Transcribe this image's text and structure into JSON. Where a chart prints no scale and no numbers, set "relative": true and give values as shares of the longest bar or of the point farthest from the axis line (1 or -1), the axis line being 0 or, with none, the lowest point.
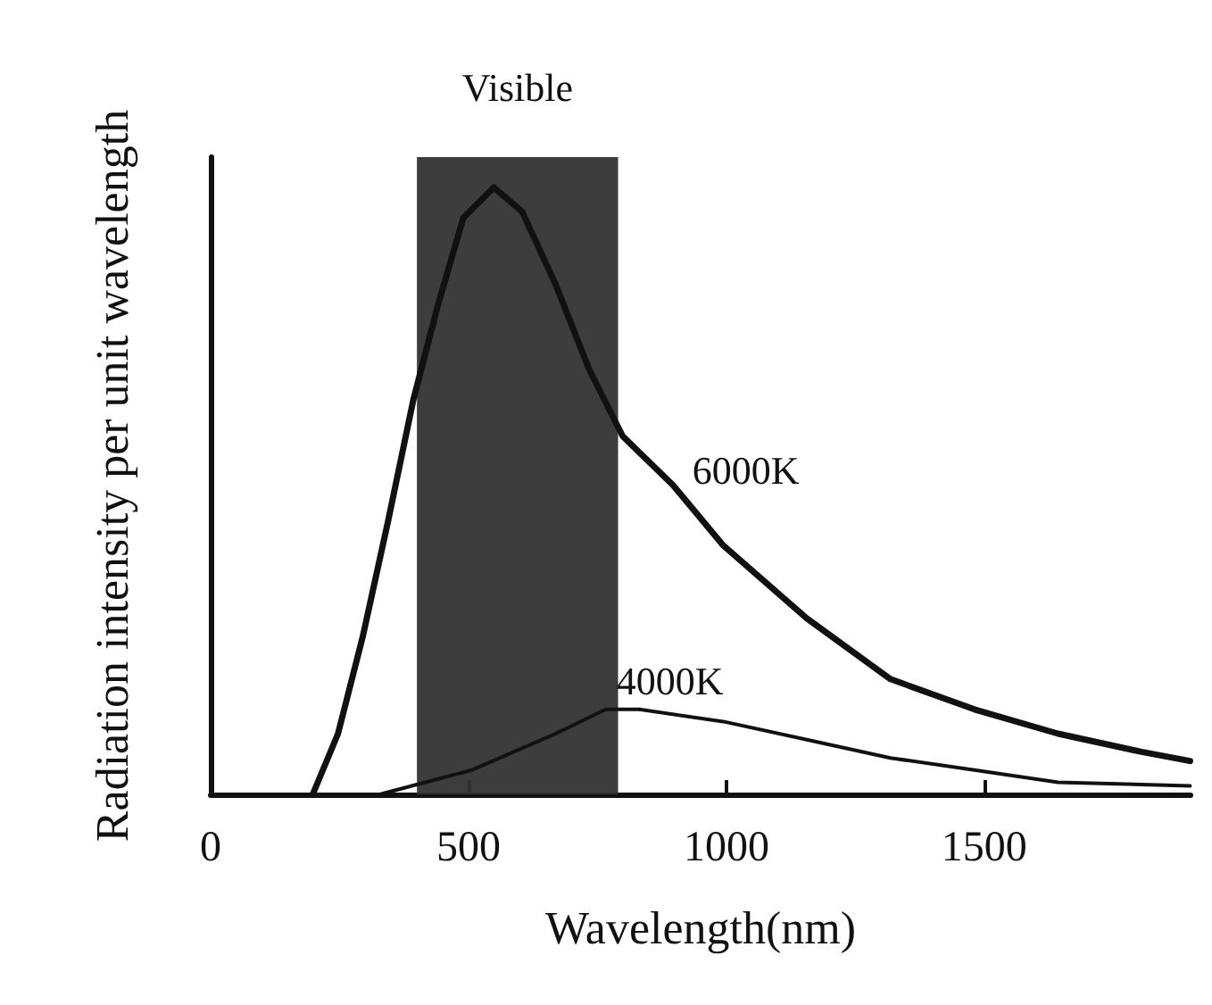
{
  "chart_data": {
    "type": "line",
    "relative": true,
    "xlabel": "Wavelength(nm)",
    "ylabel": "Radiation intensity per unit wavelength",
    "xlim": [
      0,
      1900
    ],
    "xticks": [
      0,
      500,
      1000,
      1500
    ],
    "grid": false,
    "legend": false,
    "marker": "none",
    "line_style": "solid",
    "bands": [
      {
        "axis": "x",
        "from": 400,
        "to": 790,
        "label": "Visible",
        "color": "#333333"
      }
    ],
    "series": [
      {
        "name": "6000K",
        "color": "#111111",
        "x": [
          198,
          247,
          295,
          344,
          393,
          442,
          490,
          549,
          604,
          669,
          734,
          799,
          896,
          994,
          1156,
          1318,
          1481,
          1643,
          1805,
          1899
        ],
        "values": [
          0,
          0.1,
          0.26,
          0.45,
          0.65,
          0.81,
          0.95,
          1,
          0.96,
          0.84,
          0.7,
          0.59,
          0.51,
          0.41,
          0.29,
          0.19,
          0.14,
          0.1,
          0.07,
          0.055
        ]
      },
      {
        "name": "4000K",
        "color": "#111111",
        "x": [
          328,
          506,
          669,
          766,
          831,
          994,
          1156,
          1318,
          1481,
          1643,
          1899
        ],
        "values": [
          0,
          0.04,
          0.1,
          0.14,
          0.14,
          0.12,
          0.09,
          0.06,
          0.04,
          0.02,
          0.014
        ]
      }
    ]
  }
}
